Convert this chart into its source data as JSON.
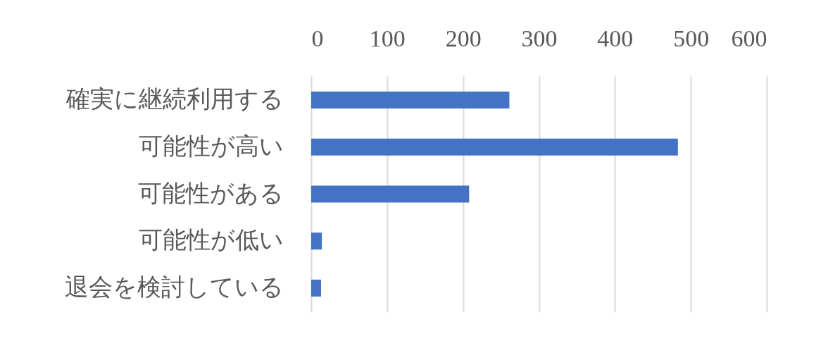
{
  "chart_data": {
    "type": "bar",
    "orientation": "horizontal",
    "categories": [
      "確実に継続利用する",
      "可能性が高い",
      "可能性がある",
      "可能性が低い",
      "退会を検討している"
    ],
    "values": [
      261,
      483,
      208,
      14,
      13
    ],
    "color": "#4472c4",
    "xlim": [
      0,
      600
    ],
    "xticks": [
      0,
      100,
      200,
      300,
      400,
      500,
      600
    ],
    "grid": "x"
  }
}
